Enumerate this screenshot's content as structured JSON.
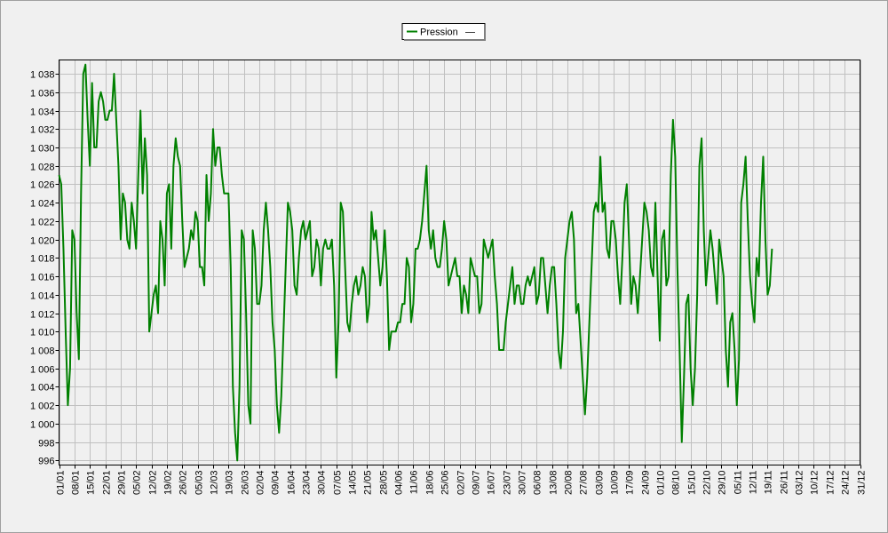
{
  "chart_data": {
    "type": "line",
    "title": "",
    "xlabel": "",
    "ylabel": "",
    "legend": {
      "placement": "top-center",
      "entries": [
        "Pression",
        "—"
      ]
    },
    "grid": true,
    "ylim": [
      995.5,
      1039.5
    ],
    "yticks": [
      996,
      998,
      1000,
      1002,
      1004,
      1006,
      1008,
      1010,
      1012,
      1014,
      1016,
      1018,
      1020,
      1022,
      1024,
      1026,
      1028,
      1030,
      1032,
      1034,
      1036,
      1038
    ],
    "ytick_labels": [
      "996",
      "998",
      "1 000",
      "1 002",
      "1 004",
      "1 006",
      "1 008",
      "1 010",
      "1 012",
      "1 014",
      "1 016",
      "1 018",
      "1 020",
      "1 022",
      "1 024",
      "1 026",
      "1 028",
      "1 030",
      "1 032",
      "1 034",
      "1 036",
      "1 038"
    ],
    "xtick_labels": [
      "01/01",
      "08/01",
      "15/01",
      "22/01",
      "29/01",
      "05/02",
      "12/02",
      "19/02",
      "26/02",
      "05/03",
      "12/03",
      "19/03",
      "26/03",
      "02/04",
      "09/04",
      "16/04",
      "23/04",
      "30/04",
      "07/05",
      "14/05",
      "21/05",
      "28/05",
      "04/06",
      "11/06",
      "18/06",
      "25/06",
      "02/07",
      "09/07",
      "16/07",
      "23/07",
      "30/07",
      "06/08",
      "13/08",
      "20/08",
      "27/08",
      "03/09",
      "10/09",
      "17/09",
      "24/09",
      "01/10",
      "08/10",
      "15/10",
      "22/10",
      "29/10",
      "05/11",
      "12/11",
      "19/11",
      "26/11",
      "03/12",
      "10/12",
      "17/12",
      "24/12",
      "31/12"
    ],
    "series": [
      {
        "name": "Pression",
        "color": "#008000",
        "x_start_day": 1,
        "x_step_days": 1,
        "values": [
          1027,
          1026,
          1019,
          1010,
          1002,
          1006,
          1021,
          1020,
          1012,
          1007,
          1025,
          1038,
          1039,
          1033,
          1028,
          1037,
          1030,
          1030,
          1035,
          1036,
          1035,
          1033,
          1033,
          1034,
          1034,
          1038,
          1033,
          1028,
          1020,
          1025,
          1024,
          1020,
          1019,
          1024,
          1022,
          1019,
          1027,
          1034,
          1025,
          1031,
          1027,
          1010,
          1012,
          1014,
          1015,
          1012,
          1022,
          1020,
          1015,
          1025,
          1026,
          1019,
          1028,
          1031,
          1029,
          1028,
          1022,
          1017,
          1018,
          1019,
          1021,
          1020,
          1023,
          1022,
          1017,
          1017,
          1015,
          1027,
          1022,
          1025,
          1032,
          1028,
          1030,
          1030,
          1027,
          1025,
          1025,
          1025,
          1017,
          1004,
          999,
          996,
          1004,
          1021,
          1020,
          1012,
          1002,
          1000,
          1021,
          1019,
          1013,
          1013,
          1015,
          1021,
          1024,
          1021,
          1017,
          1011,
          1008,
          1002,
          999,
          1003,
          1010,
          1017,
          1024,
          1023,
          1021,
          1015,
          1014,
          1018,
          1021,
          1022,
          1020,
          1021,
          1022,
          1016,
          1017,
          1020,
          1019,
          1015,
          1019,
          1020,
          1019,
          1019,
          1020,
          1015,
          1005,
          1011,
          1024,
          1023,
          1017,
          1011,
          1010,
          1013,
          1015,
          1016,
          1014,
          1015,
          1017,
          1016,
          1011,
          1013,
          1023,
          1020,
          1021,
          1018,
          1015,
          1017,
          1021,
          1016,
          1008,
          1010,
          1010,
          1010,
          1011,
          1011,
          1013,
          1013,
          1018,
          1017,
          1011,
          1013,
          1019,
          1019,
          1020,
          1022,
          1025,
          1028,
          1021,
          1019,
          1021,
          1018,
          1017,
          1017,
          1019,
          1022,
          1020,
          1015,
          1016,
          1017,
          1018,
          1016,
          1016,
          1012,
          1015,
          1014,
          1012,
          1018,
          1017,
          1016,
          1016,
          1012,
          1013,
          1020,
          1019,
          1018,
          1019,
          1020,
          1016,
          1013,
          1008,
          1008,
          1008,
          1011,
          1013,
          1015,
          1017,
          1013,
          1015,
          1015,
          1013,
          1013,
          1015,
          1016,
          1015,
          1016,
          1017,
          1013,
          1014,
          1018,
          1018,
          1015,
          1012,
          1015,
          1017,
          1017,
          1013,
          1008,
          1006,
          1010,
          1018,
          1020,
          1022,
          1023,
          1020,
          1012,
          1013,
          1009,
          1005,
          1001,
          1005,
          1011,
          1017,
          1023,
          1024,
          1023,
          1029,
          1023,
          1024,
          1019,
          1018,
          1022,
          1022,
          1020,
          1016,
          1013,
          1018,
          1024,
          1026,
          1020,
          1013,
          1016,
          1015,
          1012,
          1016,
          1020,
          1024,
          1023,
          1021,
          1017,
          1016,
          1024,
          1016,
          1009,
          1020,
          1021,
          1015,
          1016,
          1027,
          1033,
          1029,
          1017,
          1008,
          998,
          1005,
          1013,
          1014,
          1006,
          1002,
          1006,
          1014,
          1028,
          1031,
          1021,
          1015,
          1018,
          1021,
          1019,
          1016,
          1013,
          1020,
          1018,
          1016,
          1008,
          1004,
          1011,
          1012,
          1008,
          1002,
          1007,
          1024,
          1026,
          1029,
          1022,
          1016,
          1013,
          1011,
          1018,
          1016,
          1024,
          1029,
          1020,
          1014,
          1015,
          1019
        ]
      }
    ]
  }
}
